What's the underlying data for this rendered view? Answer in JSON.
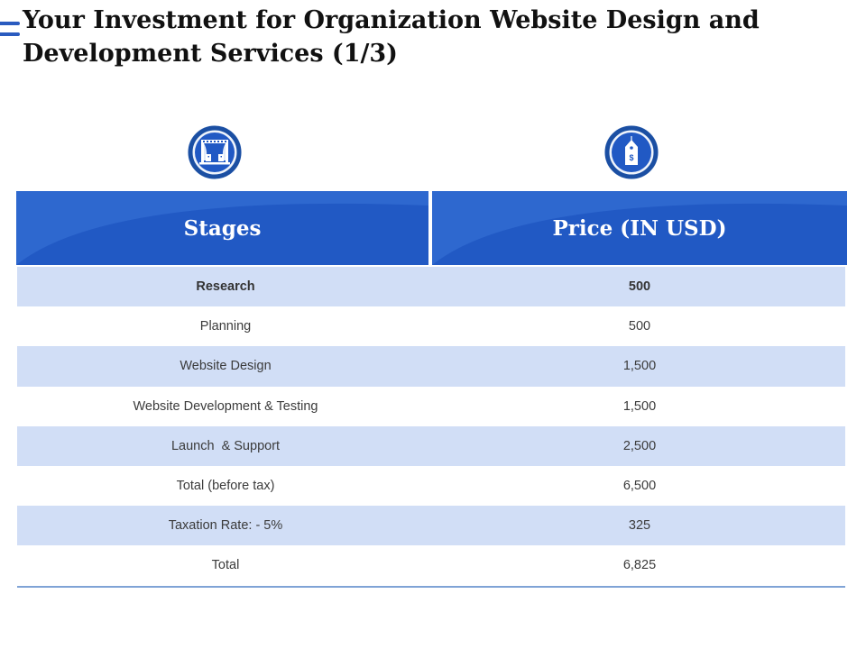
{
  "slide": {
    "title": "Your Investment for Organization Website Design and Development Services (1/3)"
  },
  "table": {
    "headers": {
      "stages": "Stages",
      "price": "Price (IN USD)"
    },
    "icons": {
      "stages": "stage-icon",
      "price": "price-tag-icon"
    },
    "rows": [
      {
        "stage": "Research",
        "price": "500"
      },
      {
        "stage": "Planning",
        "price": "500"
      },
      {
        "stage": "Website Design",
        "price": "1,500"
      },
      {
        "stage": "Website Development & Testing",
        "price": "1,500"
      },
      {
        "stage": "Launch  & Support",
        "price": "2,500"
      },
      {
        "stage": "Total (before tax)",
        "price": "6,500"
      },
      {
        "stage": "Taxation Rate: - 5%",
        "price": "325"
      },
      {
        "stage": "Total",
        "price": "6,825"
      }
    ]
  },
  "colors": {
    "header": "#2159c4",
    "row_alt": "#d1def6",
    "accent": "#2a5bbf"
  }
}
